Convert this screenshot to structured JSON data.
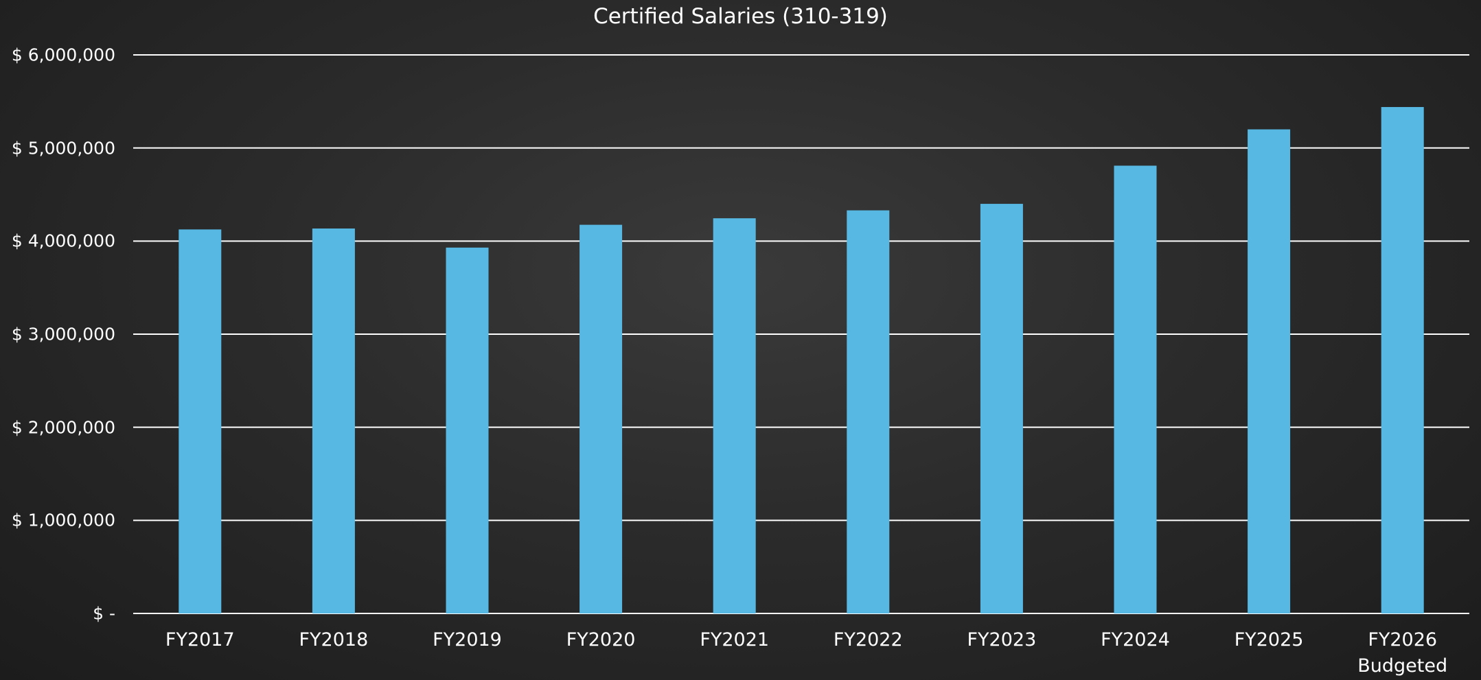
{
  "chart_data": {
    "type": "bar",
    "title": "Certified Salaries (310-319)",
    "categories": [
      "FY2017",
      "FY2018",
      "FY2019",
      "FY2020",
      "FY2021",
      "FY2022",
      "FY2023",
      "FY2024",
      "FY2025",
      "FY2026 Budgeted"
    ],
    "values": [
      4125000,
      4135000,
      3930000,
      4175000,
      4245000,
      4330000,
      4400000,
      4810000,
      5200000,
      5440000
    ],
    "color": "#56b8e3",
    "ylim": [
      0,
      6000000
    ],
    "yticks": [
      {
        "value": 0,
        "label": "$ -"
      },
      {
        "value": 1000000,
        "label": "$ 1,000,000"
      },
      {
        "value": 2000000,
        "label": "$ 2,000,000"
      },
      {
        "value": 3000000,
        "label": "$ 3,000,000"
      },
      {
        "value": 4000000,
        "label": "$ 4,000,000"
      },
      {
        "value": 5000000,
        "label": "$ 5,000,000"
      },
      {
        "value": 6000000,
        "label": "$ 6,000,000"
      }
    ],
    "grid": true
  }
}
